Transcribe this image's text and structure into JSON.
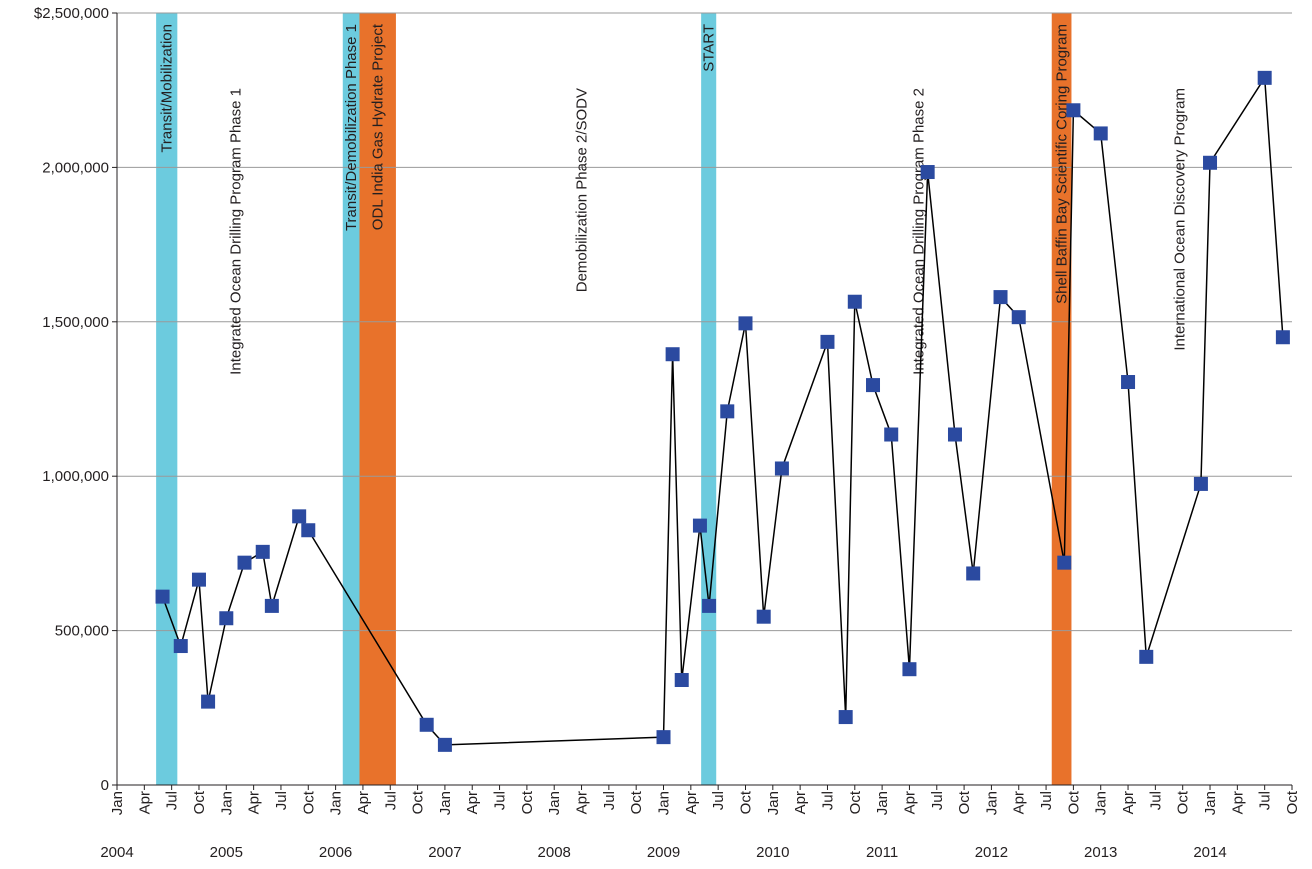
{
  "chart_data": {
    "type": "line",
    "title": "",
    "xlabel": "",
    "ylabel": "",
    "xlim": [
      "2004-01",
      "2014-10"
    ],
    "ylim": [
      0,
      2500000
    ],
    "grid": true,
    "y_ticks": [
      {
        "value": 0,
        "label": "0"
      },
      {
        "value": 500000,
        "label": "500,000"
      },
      {
        "value": 1000000,
        "label": "1,000,000"
      },
      {
        "value": 1500000,
        "label": "1,500,000"
      },
      {
        "value": 2000000,
        "label": "2,000,000"
      },
      {
        "value": 2500000,
        "label": "$2,500,000"
      }
    ],
    "month_tick_labels": [
      "Jan",
      "Apr",
      "Jul",
      "Oct"
    ],
    "years": [
      "2004",
      "2005",
      "2006",
      "2007",
      "2008",
      "2009",
      "2010",
      "2011",
      "2012",
      "2013",
      "2014"
    ],
    "series": [
      {
        "color": "#2b4aa0",
        "line_color": "#000000",
        "points": [
          {
            "x": "2004-06",
            "y": 610000
          },
          {
            "x": "2004-08",
            "y": 450000
          },
          {
            "x": "2004-10",
            "y": 665000
          },
          {
            "x": "2004-11",
            "y": 270000
          },
          {
            "x": "2005-01",
            "y": 540000
          },
          {
            "x": "2005-03",
            "y": 720000
          },
          {
            "x": "2005-05",
            "y": 755000
          },
          {
            "x": "2005-06",
            "y": 580000
          },
          {
            "x": "2005-09",
            "y": 870000
          },
          {
            "x": "2005-10",
            "y": 825000
          },
          {
            "x": "2006-11",
            "y": 195000
          },
          {
            "x": "2007-01",
            "y": 130000
          },
          {
            "x": "2009-01",
            "y": 155000
          },
          {
            "x": "2009-02",
            "y": 1395000
          },
          {
            "x": "2009-03",
            "y": 340000
          },
          {
            "x": "2009-05",
            "y": 840000
          },
          {
            "x": "2009-06",
            "y": 580000
          },
          {
            "x": "2009-08",
            "y": 1210000
          },
          {
            "x": "2009-10",
            "y": 1495000
          },
          {
            "x": "2009-12",
            "y": 545000
          },
          {
            "x": "2010-02",
            "y": 1025000
          },
          {
            "x": "2010-07",
            "y": 1435000
          },
          {
            "x": "2010-09",
            "y": 220000
          },
          {
            "x": "2010-10",
            "y": 1565000
          },
          {
            "x": "2010-12",
            "y": 1295000
          },
          {
            "x": "2011-02",
            "y": 1135000
          },
          {
            "x": "2011-04",
            "y": 375000
          },
          {
            "x": "2011-06",
            "y": 1985000
          },
          {
            "x": "2011-09",
            "y": 1135000
          },
          {
            "x": "2011-11",
            "y": 685000
          },
          {
            "x": "2012-02",
            "y": 1580000
          },
          {
            "x": "2012-04",
            "y": 1515000
          },
          {
            "x": "2012-09",
            "y": 720000
          },
          {
            "x": "2012-10",
            "y": 2185000
          },
          {
            "x": "2013-01",
            "y": 2110000
          },
          {
            "x": "2013-04",
            "y": 1305000
          },
          {
            "x": "2013-06",
            "y": 415000
          },
          {
            "x": "2013-12",
            "y": 975000
          },
          {
            "x": "2014-01",
            "y": 2015000
          },
          {
            "x": "2014-07",
            "y": 2290000
          },
          {
            "x": "2014-09",
            "y": 1450000
          }
        ]
      }
    ],
    "bands": [
      {
        "start": "2004-05-10",
        "end": "2004-07-20",
        "color": "#6ccbde",
        "label": "Transit/Mobilization"
      },
      {
        "start": "2006-01-25",
        "end": "2006-03-20",
        "color": "#6ccbde",
        "label": "Transit/Demobilization Phase 1"
      },
      {
        "start": "2006-03-20",
        "end": "2006-07-20",
        "color": "#e8722b",
        "label": "ODL India Gas Hydrate Project"
      },
      {
        "start": "2009-05-05",
        "end": "2009-06-25",
        "color": "#6ccbde",
        "label": "START"
      },
      {
        "start": "2012-07-20",
        "end": "2012-09-25",
        "color": "#e8722b",
        "label": "Shell Baffin Bay Scientific Coring Program"
      }
    ],
    "annotations": [
      {
        "text": "Integrated Ocean Drilling Program Phase 1",
        "x": "2005-02-01"
      },
      {
        "text": "Demobilization Phase 2/SODV",
        "x": "2008-04-01"
      },
      {
        "text": "Integrated Ocean Drilling Program Phase 2",
        "x": "2011-05-01"
      },
      {
        "text": "International Ocean Discovery Program",
        "x": "2013-09-20"
      }
    ]
  }
}
